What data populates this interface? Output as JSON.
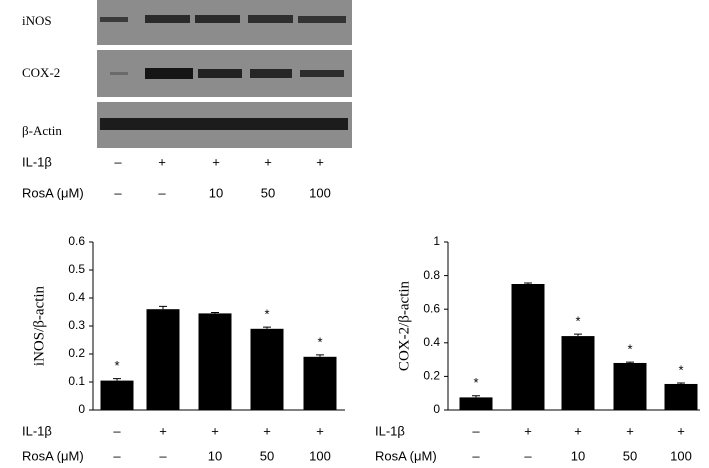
{
  "blot": {
    "rows": [
      "iNOS",
      "COX-2",
      "β-Actin"
    ],
    "treatments": [
      {
        "label": "IL-1β",
        "values": [
          "–",
          "+",
          "+",
          "+",
          "+"
        ]
      },
      {
        "label": "RosA (μM)",
        "values": [
          "–",
          "–",
          "10",
          "50",
          "100"
        ]
      }
    ]
  },
  "chart_data": [
    {
      "type": "bar",
      "y_label": "iNOS/β-actin",
      "color": "#000000",
      "values": [
        0.105,
        0.36,
        0.345,
        0.29,
        0.19
      ],
      "errors": [
        0.007,
        0.01,
        0.003,
        0.006,
        0.007
      ],
      "annotations": [
        "*",
        null,
        null,
        "*",
        "*"
      ],
      "x_label_rows": [
        {
          "label": "IL-1β",
          "labels": [
            "–",
            "+",
            "+",
            "+",
            "+"
          ]
        },
        {
          "label": "RosA (μM)",
          "labels": [
            "–",
            "–",
            "10",
            "50",
            "100"
          ]
        }
      ],
      "ylim": [
        0,
        0.6
      ],
      "yticks": [
        0,
        0.1,
        0.2,
        0.3,
        0.4,
        0.5,
        0.6
      ]
    },
    {
      "type": "bar",
      "y_label": "COX-2/β-actin",
      "color": "#000000",
      "values": [
        0.075,
        0.75,
        0.44,
        0.28,
        0.155
      ],
      "errors": [
        0.01,
        0.006,
        0.012,
        0.005,
        0.006
      ],
      "annotations": [
        "*",
        null,
        "*",
        "*",
        "*"
      ],
      "x_label_rows": [
        {
          "label": "IL-1β",
          "labels": [
            "–",
            "+",
            "+",
            "+",
            "+"
          ]
        },
        {
          "label": "RosA (μM)",
          "labels": [
            "–",
            "–",
            "10",
            "50",
            "100"
          ]
        }
      ],
      "ylim": [
        0,
        1
      ],
      "yticks": [
        0,
        0.2,
        0.4,
        0.6,
        0.8,
        1
      ]
    }
  ]
}
